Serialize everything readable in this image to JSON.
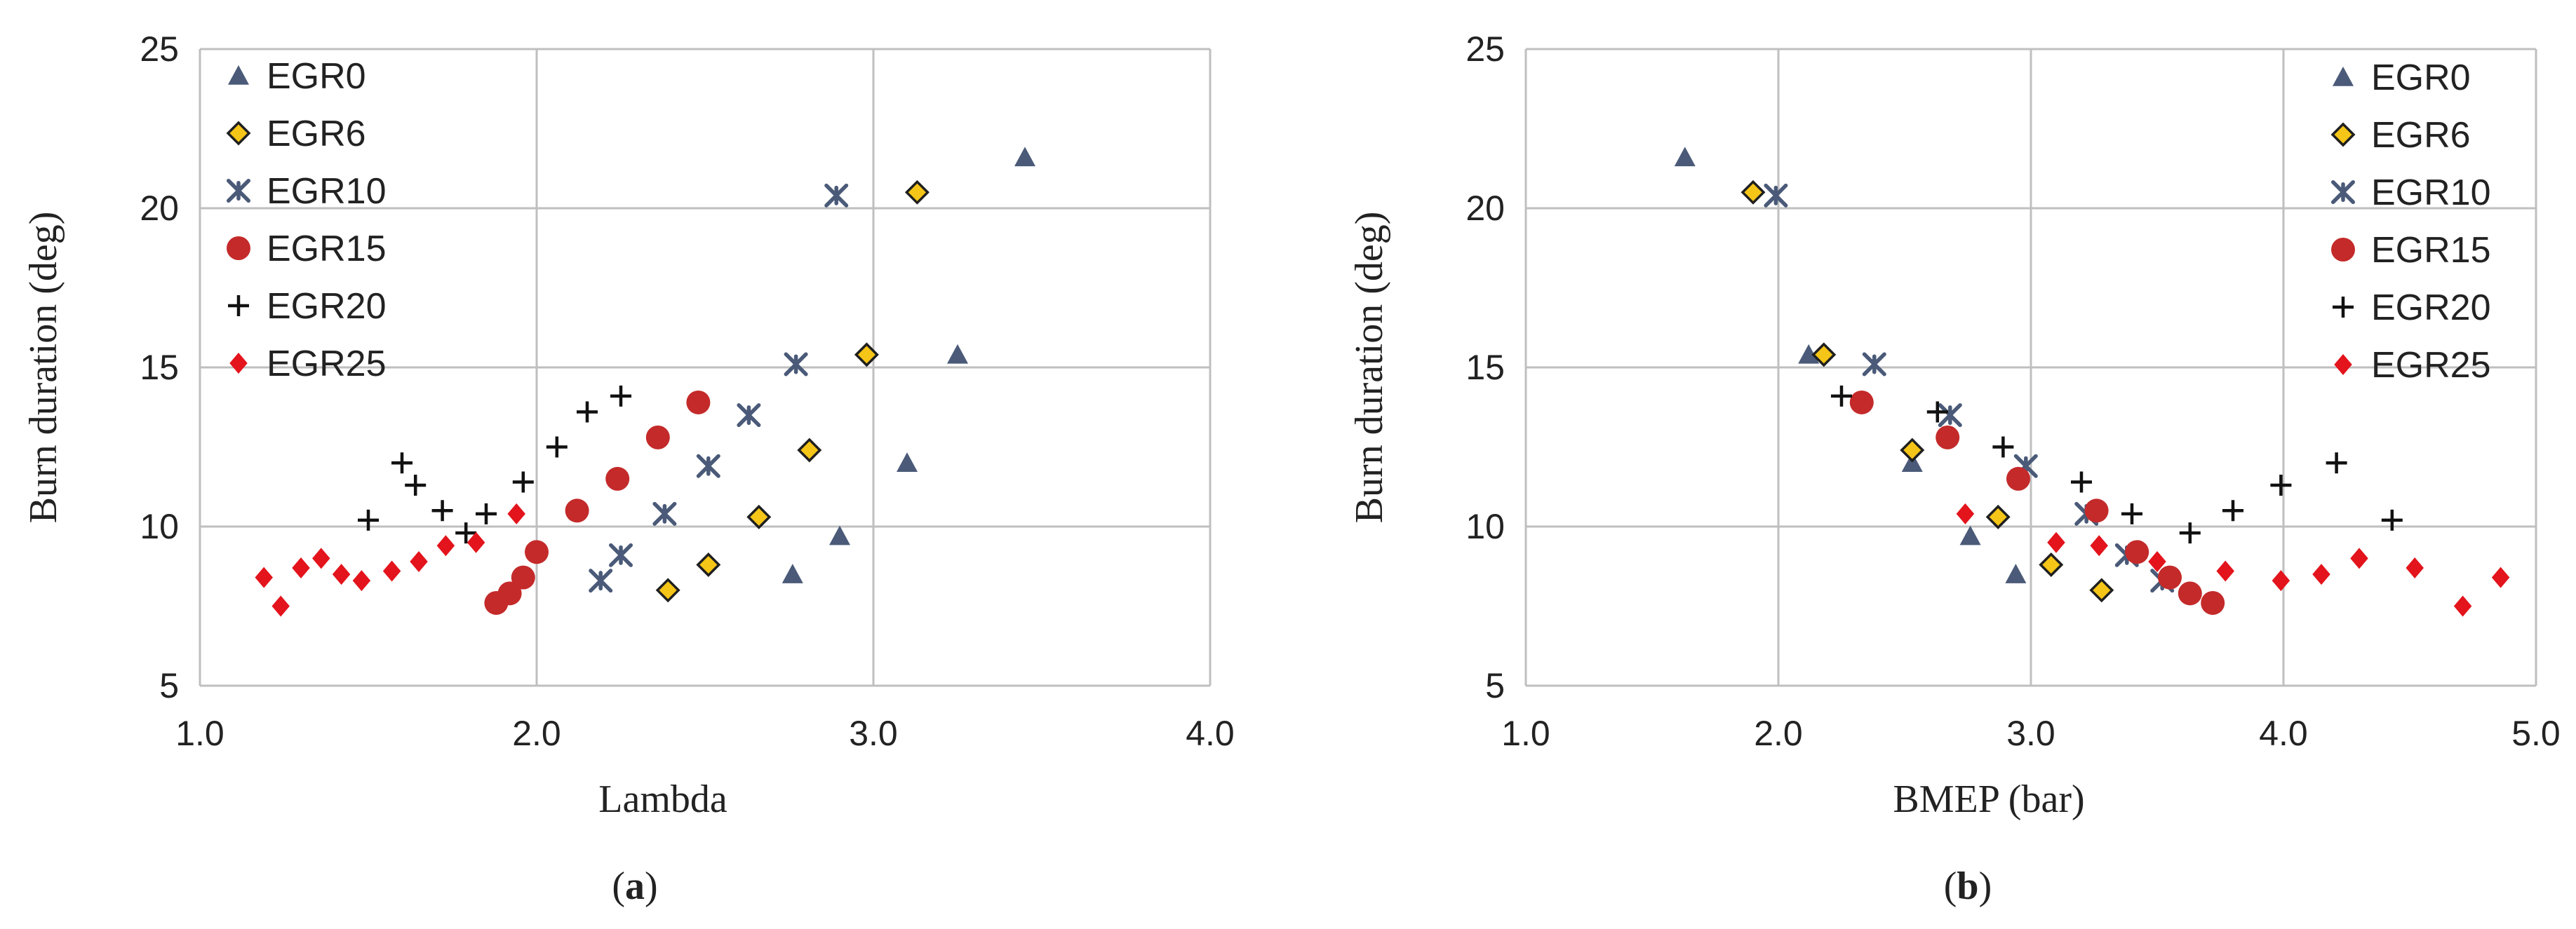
{
  "markers": {
    "EGR0": {
      "shape": "triangle",
      "fill": "#4a5a78",
      "stroke": "#4a5a78"
    },
    "EGR6": {
      "shape": "diamond-outlined",
      "fill": "#f5c518",
      "stroke": "#1f1f1f"
    },
    "EGR10": {
      "shape": "star-cross",
      "fill": "#4a5a78",
      "stroke": "#4a5a78"
    },
    "EGR15": {
      "shape": "circle",
      "fill": "#c42a2a",
      "stroke": "#c42a2a"
    },
    "EGR20": {
      "shape": "plus",
      "fill": "#111111",
      "stroke": "#111111"
    },
    "EGR25": {
      "shape": "diamond",
      "fill": "#e3141c",
      "stroke": "#e3141c"
    }
  },
  "chart_data": [
    {
      "type": "scatter",
      "panel_label": "a",
      "xlabel": "Lambda",
      "ylabel": "Burn duration (deg)",
      "xlim": [
        1.0,
        4.0
      ],
      "ylim": [
        5,
        25
      ],
      "xticks": [
        "1.0",
        "2.0",
        "3.0",
        "4.0"
      ],
      "yticks": [
        "5",
        "10",
        "15",
        "20",
        "25"
      ],
      "grid": true,
      "legend_position": "top-left",
      "series": [
        {
          "name": "EGR0",
          "points": [
            [
              2.76,
              8.5
            ],
            [
              2.9,
              9.7
            ],
            [
              3.1,
              12.0
            ],
            [
              3.25,
              15.4
            ],
            [
              3.45,
              21.6
            ]
          ]
        },
        {
          "name": "EGR6",
          "points": [
            [
              2.39,
              8.0
            ],
            [
              2.51,
              8.8
            ],
            [
              2.66,
              10.3
            ],
            [
              2.81,
              12.4
            ],
            [
              2.98,
              15.4
            ],
            [
              3.13,
              20.5
            ]
          ]
        },
        {
          "name": "EGR10",
          "points": [
            [
              2.19,
              8.3
            ],
            [
              2.25,
              9.1
            ],
            [
              2.38,
              10.4
            ],
            [
              2.51,
              11.9
            ],
            [
              2.63,
              13.5
            ],
            [
              2.77,
              15.1
            ],
            [
              2.89,
              20.4
            ]
          ]
        },
        {
          "name": "EGR15",
          "points": [
            [
              1.88,
              7.6
            ],
            [
              1.92,
              7.9
            ],
            [
              1.96,
              8.4
            ],
            [
              2.0,
              9.2
            ],
            [
              2.12,
              10.5
            ],
            [
              2.24,
              11.5
            ],
            [
              2.36,
              12.8
            ],
            [
              2.48,
              13.9
            ]
          ]
        },
        {
          "name": "EGR20",
          "points": [
            [
              1.5,
              10.2
            ],
            [
              1.6,
              12.0
            ],
            [
              1.64,
              11.3
            ],
            [
              1.72,
              10.5
            ],
            [
              1.79,
              9.8
            ],
            [
              1.85,
              10.4
            ],
            [
              1.96,
              11.4
            ],
            [
              2.06,
              12.5
            ],
            [
              2.15,
              13.6
            ],
            [
              2.25,
              14.1
            ]
          ]
        },
        {
          "name": "EGR25",
          "points": [
            [
              1.19,
              8.4
            ],
            [
              1.24,
              7.5
            ],
            [
              1.3,
              8.7
            ],
            [
              1.36,
              9.0
            ],
            [
              1.42,
              8.5
            ],
            [
              1.48,
              8.3
            ],
            [
              1.57,
              8.6
            ],
            [
              1.65,
              8.9
            ],
            [
              1.73,
              9.4
            ],
            [
              1.82,
              9.5
            ],
            [
              1.94,
              10.4
            ]
          ]
        }
      ]
    },
    {
      "type": "scatter",
      "panel_label": "b",
      "xlabel": "BMEP (bar)",
      "ylabel": "Burn duration (deg)",
      "xlim": [
        1.0,
        5.0
      ],
      "ylim": [
        5,
        25
      ],
      "xticks": [
        "1.0",
        "2.0",
        "3.0",
        "4.0",
        "5.0"
      ],
      "yticks": [
        "5",
        "10",
        "15",
        "20",
        "25"
      ],
      "grid": true,
      "legend_position": "top-right",
      "series": [
        {
          "name": "EGR0",
          "points": [
            [
              1.63,
              21.6
            ],
            [
              2.12,
              15.4
            ],
            [
              2.53,
              12.0
            ],
            [
              2.76,
              9.7
            ],
            [
              2.94,
              8.5
            ]
          ]
        },
        {
          "name": "EGR6",
          "points": [
            [
              1.9,
              20.5
            ],
            [
              2.18,
              15.4
            ],
            [
              2.53,
              12.4
            ],
            [
              2.87,
              10.3
            ],
            [
              3.08,
              8.8
            ],
            [
              3.28,
              8.0
            ]
          ]
        },
        {
          "name": "EGR10",
          "points": [
            [
              1.99,
              20.4
            ],
            [
              2.38,
              15.1
            ],
            [
              2.68,
              13.5
            ],
            [
              2.98,
              11.9
            ],
            [
              3.22,
              10.4
            ],
            [
              3.38,
              9.1
            ],
            [
              3.52,
              8.3
            ]
          ]
        },
        {
          "name": "EGR15",
          "points": [
            [
              2.33,
              13.9
            ],
            [
              2.67,
              12.8
            ],
            [
              2.95,
              11.5
            ],
            [
              3.26,
              10.5
            ],
            [
              3.42,
              9.2
            ],
            [
              3.55,
              8.4
            ],
            [
              3.63,
              7.9
            ],
            [
              3.72,
              7.6
            ]
          ]
        },
        {
          "name": "EGR20",
          "points": [
            [
              2.25,
              14.1
            ],
            [
              2.63,
              13.6
            ],
            [
              2.89,
              12.5
            ],
            [
              3.2,
              11.4
            ],
            [
              3.4,
              10.4
            ],
            [
              3.63,
              9.8
            ],
            [
              3.8,
              10.5
            ],
            [
              3.99,
              11.3
            ],
            [
              4.21,
              12.0
            ],
            [
              4.43,
              10.2
            ]
          ]
        },
        {
          "name": "EGR25",
          "points": [
            [
              2.74,
              10.4
            ],
            [
              3.1,
              9.5
            ],
            [
              3.27,
              9.4
            ],
            [
              3.5,
              8.9
            ],
            [
              3.77,
              8.6
            ],
            [
              3.99,
              8.3
            ],
            [
              4.15,
              8.5
            ],
            [
              4.3,
              9.0
            ],
            [
              4.52,
              8.7
            ],
            [
              4.71,
              7.5
            ],
            [
              4.86,
              8.4
            ]
          ]
        }
      ]
    }
  ]
}
